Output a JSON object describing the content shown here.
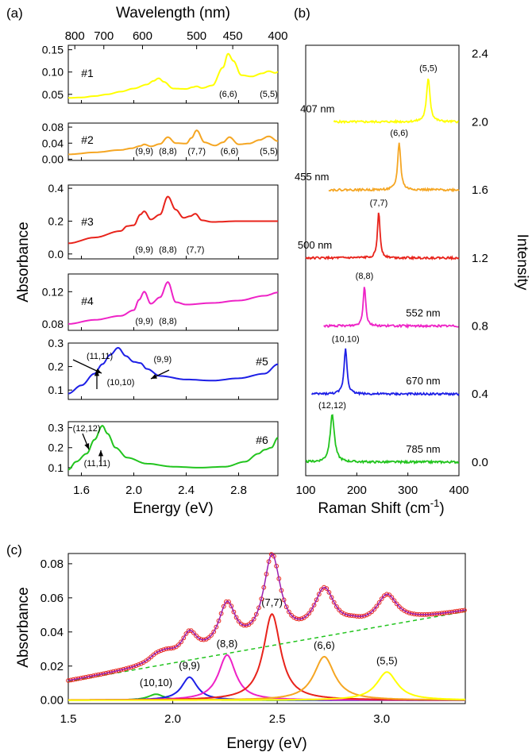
{
  "chart_data": [
    {
      "panel": "(a)",
      "type": "line",
      "xlabel": "Energy (eV)",
      "ylabel": "Absorbance",
      "top_axis_label": "Wavelength (nm)",
      "top_ticks": [
        "800",
        "700",
        "600",
        "500",
        "450",
        "400"
      ],
      "top_tick_nm": [
        800,
        700,
        600,
        500,
        450,
        400
      ],
      "xlim": [
        1.5,
        3.1
      ],
      "x_ticks": [
        "1.6",
        "2.0",
        "2.4",
        "2.8"
      ],
      "x_tick_values": [
        1.6,
        2.0,
        2.4,
        2.8
      ],
      "subplots": [
        {
          "name": "#1",
          "color": "#ffff00",
          "ylim": [
            0.03,
            0.16
          ],
          "y_ticks": [
            "0.05",
            "0.10",
            "0.15"
          ],
          "y_tick_values": [
            0.05,
            0.1,
            0.15
          ],
          "labels": [
            {
              "text": "(6,6)",
              "x": 2.72
            },
            {
              "text": "(5,5)",
              "x": 3.03
            }
          ],
          "x": [
            1.5,
            1.6,
            1.7,
            1.8,
            1.9,
            2.0,
            2.1,
            2.15,
            2.19,
            2.23,
            2.3,
            2.4,
            2.45,
            2.48,
            2.52,
            2.6,
            2.68,
            2.72,
            2.76,
            2.82,
            2.9,
            2.98,
            3.03,
            3.08,
            3.1
          ],
          "y": [
            0.042,
            0.043,
            0.046,
            0.05,
            0.056,
            0.063,
            0.072,
            0.08,
            0.086,
            0.078,
            0.063,
            0.062,
            0.066,
            0.068,
            0.064,
            0.07,
            0.11,
            0.141,
            0.125,
            0.093,
            0.09,
            0.097,
            0.102,
            0.098,
            0.1
          ]
        },
        {
          "name": "#2",
          "color": "#f5a623",
          "ylim": [
            -0.003,
            0.09
          ],
          "y_ticks": [
            "0.00",
            "0.04",
            "0.08"
          ],
          "y_tick_values": [
            0.0,
            0.04,
            0.08
          ],
          "labels": [
            {
              "text": "(9,9)",
              "x": 2.08
            },
            {
              "text": "(8,8)",
              "x": 2.26
            },
            {
              "text": "(7,7)",
              "x": 2.48
            },
            {
              "text": "(6,6)",
              "x": 2.73
            },
            {
              "text": "(5,5)",
              "x": 3.03
            }
          ],
          "x": [
            1.5,
            1.7,
            1.9,
            1.98,
            2.05,
            2.08,
            2.13,
            2.2,
            2.26,
            2.32,
            2.4,
            2.44,
            2.48,
            2.54,
            2.62,
            2.68,
            2.73,
            2.8,
            2.88,
            2.96,
            3.03,
            3.1
          ],
          "y": [
            0.012,
            0.017,
            0.023,
            0.027,
            0.033,
            0.037,
            0.032,
            0.038,
            0.055,
            0.04,
            0.039,
            0.053,
            0.072,
            0.042,
            0.034,
            0.042,
            0.055,
            0.037,
            0.039,
            0.048,
            0.057,
            0.045
          ]
        },
        {
          "name": "#3",
          "color": "#e8231b",
          "ylim": [
            -0.03,
            0.42
          ],
          "y_ticks": [
            "0.0",
            "0.2",
            "0.4"
          ],
          "y_tick_values": [
            0.0,
            0.2,
            0.4
          ],
          "labels": [
            {
              "text": "(9,9)",
              "x": 2.08
            },
            {
              "text": "(8,8)",
              "x": 2.26
            },
            {
              "text": "(7,7)",
              "x": 2.47
            }
          ],
          "x": [
            1.5,
            1.7,
            1.9,
            1.95,
            2.0,
            2.05,
            2.08,
            2.13,
            2.2,
            2.26,
            2.32,
            2.38,
            2.43,
            2.47,
            2.52,
            2.6,
            2.8,
            3.1
          ],
          "y": [
            0.065,
            0.1,
            0.14,
            0.17,
            0.175,
            0.24,
            0.26,
            0.21,
            0.24,
            0.35,
            0.27,
            0.22,
            0.23,
            0.245,
            0.205,
            0.195,
            0.2,
            0.2
          ]
        },
        {
          "name": "#4",
          "color": "#ee22c6",
          "ylim": [
            0.072,
            0.142
          ],
          "y_ticks": [
            "0.08",
            "0.12"
          ],
          "y_tick_values": [
            0.08,
            0.12
          ],
          "labels": [
            {
              "text": "(9,9)",
              "x": 2.08
            },
            {
              "text": "(8,8)",
              "x": 2.26
            }
          ],
          "x": [
            1.5,
            1.7,
            1.9,
            2.0,
            2.04,
            2.08,
            2.13,
            2.2,
            2.26,
            2.32,
            2.4,
            2.6,
            2.8,
            3.0,
            3.1
          ],
          "y": [
            0.08,
            0.085,
            0.09,
            0.097,
            0.11,
            0.12,
            0.105,
            0.113,
            0.132,
            0.107,
            0.104,
            0.106,
            0.109,
            0.115,
            0.119
          ]
        },
        {
          "name": "#5",
          "color": "#1d1fe6",
          "ylim": [
            0.06,
            0.3
          ],
          "y_ticks": [
            "0.1",
            "0.2",
            "0.3"
          ],
          "y_tick_values": [
            0.1,
            0.2,
            0.3
          ],
          "labels": [
            {
              "text": "(11,11)",
              "x": 1.74
            },
            {
              "text": "(10,10)",
              "x": 1.9
            },
            {
              "text": "(9,9)",
              "x": 2.22
            }
          ],
          "x": [
            1.5,
            1.6,
            1.7,
            1.76,
            1.82,
            1.88,
            1.94,
            2.0,
            2.05,
            2.1,
            2.2,
            2.4,
            2.6,
            2.8,
            3.0,
            3.1
          ],
          "y": [
            0.085,
            0.12,
            0.17,
            0.21,
            0.25,
            0.28,
            0.245,
            0.22,
            0.215,
            0.19,
            0.16,
            0.145,
            0.14,
            0.15,
            0.17,
            0.21
          ]
        },
        {
          "name": "#6",
          "color": "#22c41e",
          "ylim": [
            0.06,
            0.33
          ],
          "y_ticks": [
            "0.1",
            "0.2",
            "0.3"
          ],
          "y_tick_values": [
            0.1,
            0.2,
            0.3
          ],
          "labels": [
            {
              "text": "(12,12)",
              "x": 1.64
            },
            {
              "text": "(11,11)",
              "x": 1.72
            }
          ],
          "x": [
            1.5,
            1.56,
            1.64,
            1.7,
            1.76,
            1.8,
            1.86,
            1.95,
            2.1,
            2.3,
            2.5,
            2.7,
            2.85,
            2.95,
            3.0,
            3.05,
            3.1
          ],
          "y": [
            0.09,
            0.13,
            0.17,
            0.24,
            0.31,
            0.27,
            0.2,
            0.15,
            0.12,
            0.105,
            0.1,
            0.105,
            0.13,
            0.17,
            0.19,
            0.2,
            0.25
          ]
        }
      ]
    },
    {
      "panel": "(b)",
      "type": "line",
      "xlabel": "Raman Shift (cm",
      "xlabel_sup": "-1",
      "xlabel_end": ")",
      "ylabel": "Intensity",
      "xlim": [
        100,
        400
      ],
      "ylim": [
        -0.08,
        2.45
      ],
      "x_ticks": [
        "100",
        "200",
        "300",
        "400"
      ],
      "x_tick_values": [
        100,
        200,
        300,
        400
      ],
      "y_ticks": [
        "0.0",
        "0.4",
        "0.8",
        "1.2",
        "1.6",
        "2.0",
        "2.4"
      ],
      "y_tick_values": [
        0.0,
        0.4,
        0.8,
        1.2,
        1.6,
        2.0,
        2.4
      ],
      "spectra": [
        {
          "laser": "407 nm",
          "chirality": "(5,5)",
          "color": "#ffff00",
          "baseline": 2.0,
          "peak": 340,
          "height": 0.26,
          "width": 4,
          "start": 155,
          "end": 400,
          "laser_x": 123,
          "laser_side": "left"
        },
        {
          "laser": "455 nm",
          "chirality": "(6,6)",
          "color": "#f5a623",
          "baseline": 1.6,
          "peak": 283,
          "height": 0.28,
          "width": 3.5,
          "start": 145,
          "end": 400,
          "laser_x": 112,
          "laser_side": "left"
        },
        {
          "laser": "500 nm",
          "chirality": "(7,7)",
          "color": "#e8231b",
          "baseline": 1.2,
          "peak": 243,
          "height": 0.27,
          "width": 3,
          "start": 100,
          "end": 400,
          "laser_x": 118,
          "laser_side": "left"
        },
        {
          "laser": "552 nm",
          "chirality": "(8,8)",
          "color": "#ee22c6",
          "baseline": 0.8,
          "peak": 215,
          "height": 0.24,
          "width": 3,
          "start": 135,
          "end": 400,
          "laser_x": 330,
          "laser_side": "right"
        },
        {
          "laser": "670 nm",
          "chirality": "(10,10)",
          "color": "#1d1fe6",
          "baseline": 0.4,
          "peak": 178,
          "height": 0.27,
          "width": 3.5,
          "start": 112,
          "end": 400,
          "laser_x": 330,
          "laser_side": "right"
        },
        {
          "laser": "785 nm",
          "chirality": "(12,12)",
          "color": "#22c41e",
          "baseline": 0.0,
          "peak": 152,
          "height": 0.28,
          "width": 5,
          "start": 100,
          "end": 400,
          "laser_x": 330,
          "laser_side": "right"
        }
      ]
    },
    {
      "panel": "(c)",
      "type": "line",
      "xlabel": "Energy (eV)",
      "ylabel": "Absorbance",
      "xlim": [
        1.5,
        3.4
      ],
      "ylim": [
        -0.002,
        0.086
      ],
      "x_ticks": [
        "1.5",
        "2.0",
        "2.5",
        "3.0"
      ],
      "x_tick_values": [
        1.5,
        2.0,
        2.5,
        3.0
      ],
      "y_ticks": [
        "0.00",
        "0.02",
        "0.04",
        "0.06",
        "0.08"
      ],
      "y_tick_values": [
        0.0,
        0.02,
        0.04,
        0.06,
        0.08
      ],
      "background": {
        "style": "dashed",
        "color": "#22c41e",
        "x": [
          1.5,
          3.4
        ],
        "y": [
          0.011,
          0.052
        ]
      },
      "components": [
        {
          "label": "(10,10)",
          "color": "#22c41e",
          "center": 1.92,
          "amplitude": 0.0035,
          "width": 0.045
        },
        {
          "label": "(9,9)",
          "color": "#1d1fe6",
          "center": 2.08,
          "amplitude": 0.0135,
          "width": 0.045
        },
        {
          "label": "(8,8)",
          "color": "#ee22c6",
          "center": 2.26,
          "amplitude": 0.0265,
          "width": 0.05
        },
        {
          "label": "(7,7)",
          "color": "#e8231b",
          "center": 2.475,
          "amplitude": 0.0505,
          "width": 0.05
        },
        {
          "label": "(6,6)",
          "color": "#f5a623",
          "center": 2.725,
          "amplitude": 0.0255,
          "width": 0.06
        },
        {
          "label": "(5,5)",
          "color": "#ffff00",
          "center": 3.025,
          "amplitude": 0.0165,
          "width": 0.06
        }
      ],
      "measured": {
        "color": "#e8231b",
        "marker": "circle"
      },
      "fit": {
        "color": "#9b1fb0"
      }
    }
  ],
  "panel_labels": [
    "(a)",
    "(b)",
    "(c)"
  ]
}
